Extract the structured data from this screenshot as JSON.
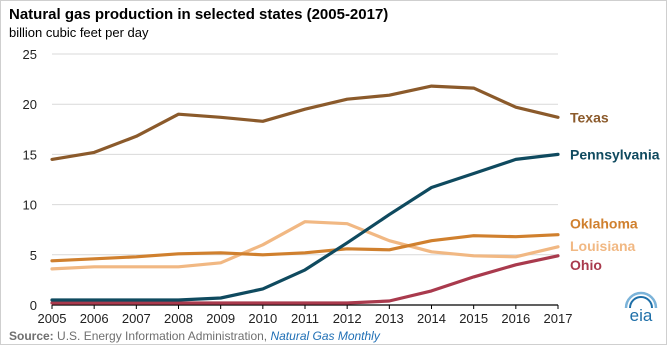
{
  "chart_data": {
    "type": "line",
    "title": "Natural gas production in selected states (2005-2017)",
    "ylabel": "billion cubic feet per day",
    "x": [
      2005,
      2006,
      2007,
      2008,
      2009,
      2010,
      2011,
      2012,
      2013,
      2014,
      2015,
      2016,
      2017
    ],
    "ylim": [
      0,
      25
    ],
    "yticks": [
      0,
      5,
      10,
      15,
      20,
      25
    ],
    "grid": "horizontal",
    "legend": "right, labels at line ends",
    "series": [
      {
        "name": "Texas",
        "color": "#8b5a2b",
        "values": [
          14.5,
          15.2,
          16.8,
          19.0,
          18.7,
          18.3,
          19.5,
          20.5,
          20.9,
          21.8,
          21.6,
          19.7,
          18.7
        ]
      },
      {
        "name": "Pennsylvania",
        "color": "#0f4a5f",
        "values": [
          0.5,
          0.5,
          0.5,
          0.5,
          0.7,
          1.6,
          3.5,
          6.2,
          9.0,
          11.7,
          13.1,
          14.5,
          15.0
        ]
      },
      {
        "name": "Oklahoma",
        "color": "#d0802e",
        "values": [
          4.4,
          4.6,
          4.8,
          5.1,
          5.2,
          5.0,
          5.2,
          5.6,
          5.5,
          6.4,
          6.9,
          6.8,
          7.0
        ]
      },
      {
        "name": "Louisiana",
        "color": "#f1b883",
        "values": [
          3.6,
          3.8,
          3.8,
          3.8,
          4.2,
          6.0,
          8.3,
          8.1,
          6.4,
          5.3,
          4.9,
          4.8,
          5.8
        ]
      },
      {
        "name": "Ohio",
        "color": "#a93a4d",
        "values": [
          0.2,
          0.2,
          0.2,
          0.2,
          0.2,
          0.2,
          0.2,
          0.2,
          0.4,
          1.4,
          2.8,
          4.0,
          4.9
        ]
      }
    ]
  },
  "source": {
    "prefix": "Source:",
    "text": "U.S. Energy Information Administration,",
    "publication": "Natural Gas Monthly"
  },
  "logo": {
    "text": "eia",
    "icon": "eia-logo-icon"
  }
}
